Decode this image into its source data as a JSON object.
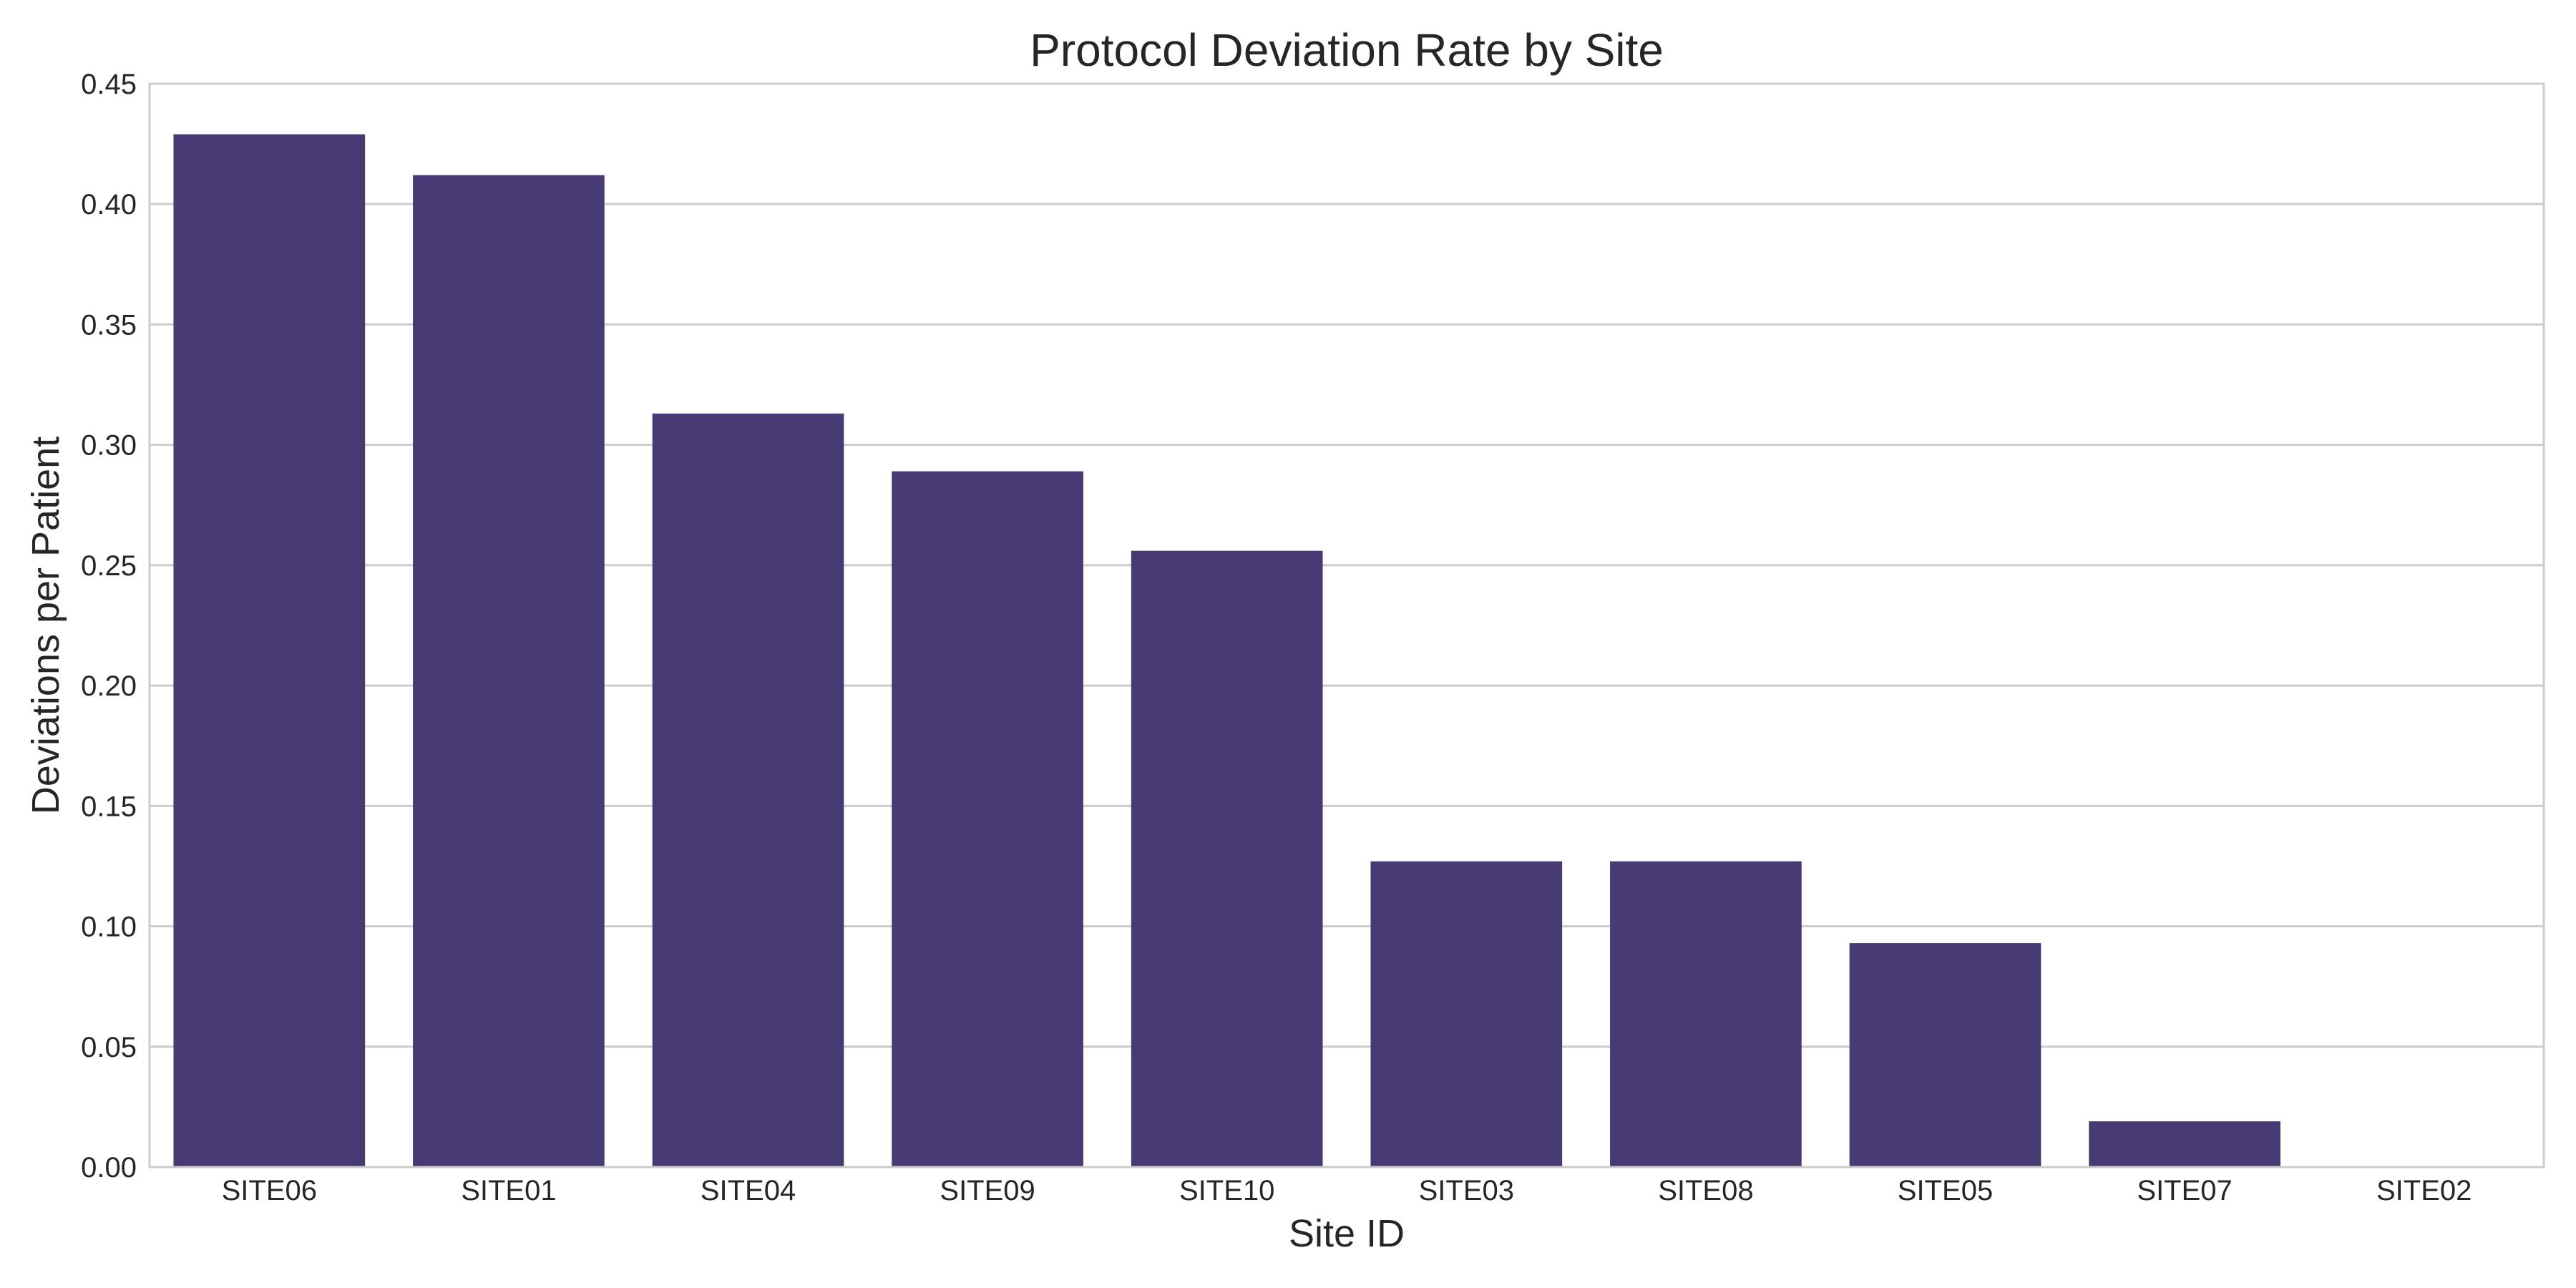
{
  "chart_data": {
    "type": "bar",
    "title": "Protocol Deviation Rate by Site",
    "xlabel": "Site ID",
    "ylabel": "Deviations per Patient",
    "categories": [
      "SITE06",
      "SITE01",
      "SITE04",
      "SITE09",
      "SITE10",
      "SITE03",
      "SITE08",
      "SITE05",
      "SITE07",
      "SITE02"
    ],
    "values": [
      0.429,
      0.412,
      0.313,
      0.289,
      0.256,
      0.127,
      0.127,
      0.093,
      0.019,
      0.0
    ],
    "ylim": [
      0,
      0.45
    ],
    "yticks": [
      "0.00",
      "0.05",
      "0.10",
      "0.15",
      "0.20",
      "0.25",
      "0.30",
      "0.35",
      "0.40",
      "0.45"
    ],
    "bar_color": "#483A74",
    "grid": true,
    "legend": "none"
  }
}
